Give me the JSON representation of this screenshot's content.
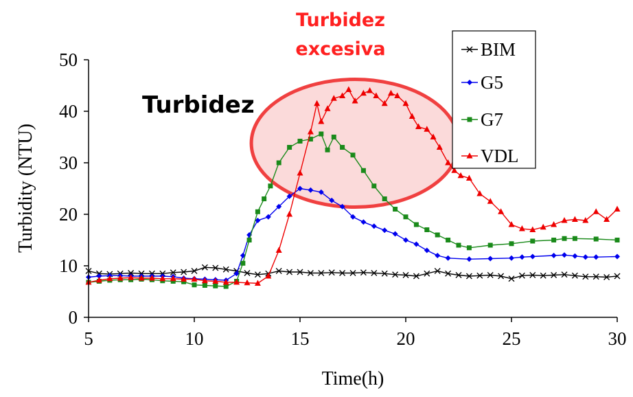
{
  "chart_data": {
    "type": "line",
    "title": "",
    "xlabel": "Time(h)",
    "ylabel": "Turbidity (NTU)",
    "xlim": [
      5,
      30
    ],
    "ylim": [
      0,
      50
    ],
    "x_ticks": [
      5,
      10,
      15,
      20,
      25,
      30
    ],
    "y_ticks": [
      0,
      10,
      20,
      30,
      40,
      50
    ],
    "grid": false,
    "legend_position": "top-right",
    "annotations": [
      {
        "text": "Turbidez",
        "color": "#000000"
      },
      {
        "text": "Turbidez excesiva",
        "line1": "Turbidez",
        "line2": "excesiva",
        "color": "#ff2020"
      }
    ],
    "highlight_region": {
      "fill": "#fbdada",
      "stroke": "#f04040",
      "x_center": 17.6,
      "y_center": 33.8
    },
    "series": [
      {
        "name": "BIM",
        "color": "#000000",
        "marker": "x",
        "points": [
          [
            5,
            9.0
          ],
          [
            5.5,
            8.5
          ],
          [
            6,
            8.4
          ],
          [
            6.5,
            8.5
          ],
          [
            7,
            8.6
          ],
          [
            7.5,
            8.5
          ],
          [
            8,
            8.5
          ],
          [
            8.5,
            8.5
          ],
          [
            9,
            8.7
          ],
          [
            9.5,
            8.8
          ],
          [
            10,
            9.0
          ],
          [
            10.5,
            9.7
          ],
          [
            11,
            9.6
          ],
          [
            11.5,
            9.3
          ],
          [
            12,
            9.0
          ],
          [
            12.5,
            8.6
          ],
          [
            13,
            8.3
          ],
          [
            13.5,
            8.5
          ],
          [
            14,
            9.0
          ],
          [
            14.5,
            8.8
          ],
          [
            15,
            8.8
          ],
          [
            15.5,
            8.6
          ],
          [
            16,
            8.6
          ],
          [
            16.5,
            8.7
          ],
          [
            17,
            8.6
          ],
          [
            17.5,
            8.6
          ],
          [
            18,
            8.7
          ],
          [
            18.5,
            8.6
          ],
          [
            19,
            8.5
          ],
          [
            19.5,
            8.3
          ],
          [
            20,
            8.2
          ],
          [
            20.5,
            8.0
          ],
          [
            21,
            8.5
          ],
          [
            21.5,
            9.0
          ],
          [
            22,
            8.5
          ],
          [
            22.5,
            8.2
          ],
          [
            23,
            8.0
          ],
          [
            23.5,
            8.1
          ],
          [
            24,
            8.2
          ],
          [
            24.5,
            8.0
          ],
          [
            25,
            7.5
          ],
          [
            25.5,
            8.1
          ],
          [
            26,
            8.2
          ],
          [
            26.5,
            8.1
          ],
          [
            27,
            8.2
          ],
          [
            27.5,
            8.3
          ],
          [
            28,
            8.1
          ],
          [
            28.5,
            7.9
          ],
          [
            29,
            7.9
          ],
          [
            29.5,
            7.8
          ],
          [
            30,
            8.0
          ]
        ]
      },
      {
        "name": "G5",
        "color": "#0000ee",
        "marker": "diamond",
        "points": [
          [
            5,
            7.8
          ],
          [
            5.5,
            8.0
          ],
          [
            6,
            8.1
          ],
          [
            6.5,
            8.1
          ],
          [
            7,
            8.0
          ],
          [
            7.5,
            8.0
          ],
          [
            8,
            8.0
          ],
          [
            8.5,
            8.0
          ],
          [
            9,
            7.9
          ],
          [
            9.5,
            7.6
          ],
          [
            10,
            7.5
          ],
          [
            10.5,
            7.4
          ],
          [
            11,
            7.3
          ],
          [
            11.5,
            7.2
          ],
          [
            12,
            8.5
          ],
          [
            12.3,
            12.0
          ],
          [
            12.6,
            16.0
          ],
          [
            13,
            18.8
          ],
          [
            13.5,
            19.5
          ],
          [
            14,
            21.5
          ],
          [
            14.5,
            23.5
          ],
          [
            15,
            25.0
          ],
          [
            15.5,
            24.7
          ],
          [
            16,
            24.3
          ],
          [
            16.5,
            22.7
          ],
          [
            17,
            21.5
          ],
          [
            17.5,
            19.5
          ],
          [
            18,
            18.5
          ],
          [
            18.5,
            17.7
          ],
          [
            19,
            16.9
          ],
          [
            19.5,
            16.2
          ],
          [
            20,
            15.0
          ],
          [
            20.5,
            14.2
          ],
          [
            21,
            13.0
          ],
          [
            21.5,
            12.0
          ],
          [
            22,
            11.5
          ],
          [
            23,
            11.3
          ],
          [
            24,
            11.4
          ],
          [
            25,
            11.5
          ],
          [
            25.5,
            11.7
          ],
          [
            26,
            11.8
          ],
          [
            27,
            12.0
          ],
          [
            27.5,
            12.1
          ],
          [
            28,
            11.9
          ],
          [
            28.5,
            11.7
          ],
          [
            29,
            11.7
          ],
          [
            30,
            11.8
          ]
        ]
      },
      {
        "name": "G7",
        "color": "#1a8a1a",
        "marker": "square",
        "points": [
          [
            5,
            6.8
          ],
          [
            5.5,
            7.0
          ],
          [
            6,
            7.2
          ],
          [
            6.5,
            7.3
          ],
          [
            7,
            7.3
          ],
          [
            7.5,
            7.4
          ],
          [
            8,
            7.3
          ],
          [
            8.5,
            7.1
          ],
          [
            9,
            7.0
          ],
          [
            9.5,
            6.9
          ],
          [
            10,
            6.3
          ],
          [
            10.5,
            6.2
          ],
          [
            11,
            6.1
          ],
          [
            11.5,
            6.0
          ],
          [
            12,
            7.0
          ],
          [
            12.3,
            10.5
          ],
          [
            12.6,
            15.0
          ],
          [
            13,
            20.5
          ],
          [
            13.3,
            23.0
          ],
          [
            13.6,
            25.5
          ],
          [
            14,
            30.0
          ],
          [
            14.5,
            33.0
          ],
          [
            15,
            34.2
          ],
          [
            15.5,
            34.6
          ],
          [
            16,
            35.6
          ],
          [
            16.3,
            32.5
          ],
          [
            16.6,
            35.0
          ],
          [
            17,
            33.0
          ],
          [
            17.5,
            31.5
          ],
          [
            18,
            28.5
          ],
          [
            18.5,
            25.5
          ],
          [
            19,
            23.0
          ],
          [
            19.5,
            21.0
          ],
          [
            20,
            19.5
          ],
          [
            20.5,
            18.0
          ],
          [
            21,
            17.0
          ],
          [
            21.5,
            16.0
          ],
          [
            22,
            15.0
          ],
          [
            22.5,
            14.0
          ],
          [
            23,
            13.5
          ],
          [
            24,
            14.0
          ],
          [
            25,
            14.3
          ],
          [
            26,
            14.8
          ],
          [
            27,
            15.0
          ],
          [
            27.5,
            15.3
          ],
          [
            28,
            15.3
          ],
          [
            29,
            15.2
          ],
          [
            30,
            15.0
          ]
        ]
      },
      {
        "name": "VDL",
        "color": "#ee0000",
        "marker": "triangle",
        "points": [
          [
            5,
            6.8
          ],
          [
            5.5,
            7.2
          ],
          [
            6,
            7.5
          ],
          [
            6.5,
            7.6
          ],
          [
            7,
            7.7
          ],
          [
            7.5,
            7.6
          ],
          [
            8,
            7.6
          ],
          [
            8.5,
            7.5
          ],
          [
            9,
            7.5
          ],
          [
            9.5,
            7.4
          ],
          [
            10,
            7.4
          ],
          [
            10.5,
            7.1
          ],
          [
            11,
            7.0
          ],
          [
            11.5,
            6.8
          ],
          [
            12,
            6.8
          ],
          [
            12.5,
            6.7
          ],
          [
            13,
            6.6
          ],
          [
            13.5,
            8.0
          ],
          [
            14,
            13.0
          ],
          [
            14.5,
            20.0
          ],
          [
            15,
            28.0
          ],
          [
            15.5,
            36.0
          ],
          [
            15.8,
            41.5
          ],
          [
            16,
            38.0
          ],
          [
            16.3,
            40.5
          ],
          [
            16.6,
            42.5
          ],
          [
            17,
            43.0
          ],
          [
            17.3,
            44.2
          ],
          [
            17.6,
            42.0
          ],
          [
            18,
            43.5
          ],
          [
            18.3,
            44.0
          ],
          [
            18.6,
            43.0
          ],
          [
            19,
            41.5
          ],
          [
            19.3,
            43.5
          ],
          [
            19.6,
            43.0
          ],
          [
            20,
            41.5
          ],
          [
            20.3,
            39.0
          ],
          [
            20.6,
            37.0
          ],
          [
            21,
            36.5
          ],
          [
            21.3,
            35.0
          ],
          [
            21.6,
            33.0
          ],
          [
            22,
            30.0
          ],
          [
            22.3,
            28.5
          ],
          [
            22.6,
            27.5
          ],
          [
            23,
            27.0
          ],
          [
            23.5,
            24.0
          ],
          [
            24,
            22.5
          ],
          [
            24.5,
            20.5
          ],
          [
            25,
            18.0
          ],
          [
            25.5,
            17.2
          ],
          [
            26,
            17.0
          ],
          [
            26.5,
            17.5
          ],
          [
            27,
            18.0
          ],
          [
            27.5,
            18.8
          ],
          [
            28,
            19.0
          ],
          [
            28.5,
            18.8
          ],
          [
            29,
            20.5
          ],
          [
            29.5,
            19.0
          ],
          [
            30,
            21.0
          ]
        ]
      }
    ]
  }
}
